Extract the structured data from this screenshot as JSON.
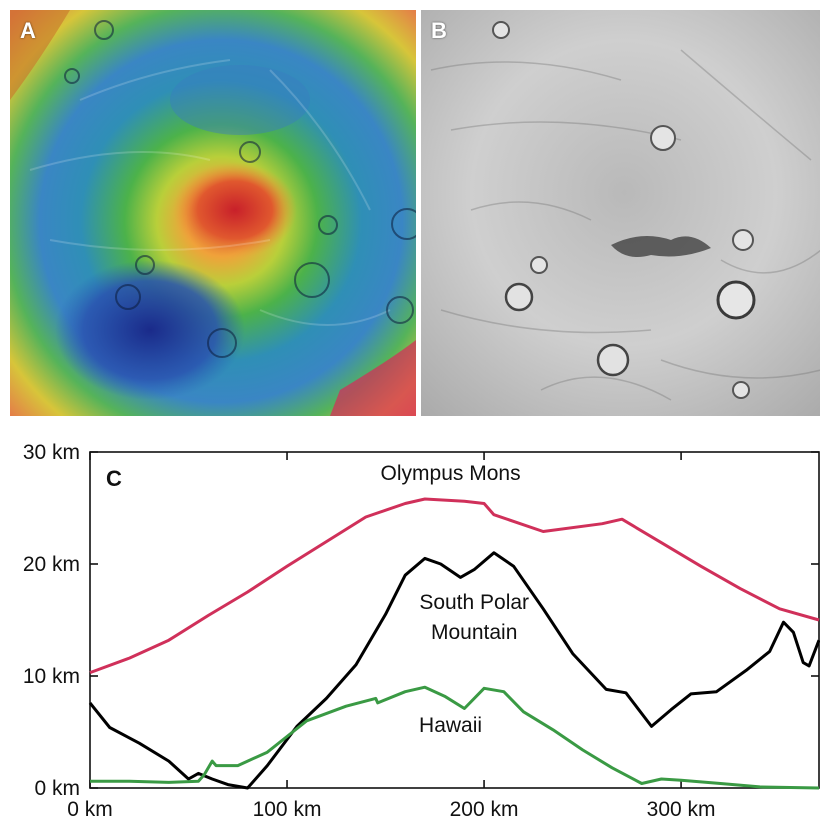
{
  "panels": [
    {
      "label": "A",
      "kind": "topographic-map"
    },
    {
      "label": "B",
      "kind": "grayscale-image"
    }
  ],
  "chart_data": {
    "type": "line",
    "panel_label": "C",
    "xlim": [
      0,
      370
    ],
    "ylim": [
      0,
      30
    ],
    "x_ticks": [
      0,
      100,
      200,
      300
    ],
    "x_tick_labels": [
      "0 km",
      "100 km",
      "200 km",
      "300 km"
    ],
    "y_ticks": [
      0,
      10,
      20,
      30
    ],
    "y_tick_labels": [
      "0 km",
      "10 km",
      "20 km",
      "30 km"
    ],
    "grid": false,
    "series": [
      {
        "name": "Olympus Mons",
        "color": "#d0305a",
        "points": [
          [
            0,
            10.3
          ],
          [
            20,
            11.6
          ],
          [
            40,
            13.2
          ],
          [
            60,
            15.4
          ],
          [
            80,
            17.5
          ],
          [
            100,
            19.8
          ],
          [
            120,
            22.0
          ],
          [
            140,
            24.2
          ],
          [
            160,
            25.4
          ],
          [
            170,
            25.8
          ],
          [
            190,
            25.6
          ],
          [
            200,
            25.4
          ],
          [
            205,
            24.4
          ],
          [
            230,
            22.9
          ],
          [
            260,
            23.6
          ],
          [
            270,
            24.0
          ],
          [
            290,
            21.9
          ],
          [
            310,
            19.8
          ],
          [
            330,
            17.8
          ],
          [
            350,
            16.0
          ],
          [
            370,
            15.0
          ]
        ]
      },
      {
        "name": "South Polar Mountain",
        "color": "#000000",
        "points": [
          [
            0,
            7.6
          ],
          [
            10,
            5.4
          ],
          [
            25,
            4.0
          ],
          [
            40,
            2.4
          ],
          [
            50,
            0.8
          ],
          [
            55,
            1.3
          ],
          [
            62,
            0.8
          ],
          [
            70,
            0.3
          ],
          [
            80,
            0.0
          ],
          [
            90,
            2.0
          ],
          [
            105,
            5.5
          ],
          [
            120,
            8.0
          ],
          [
            135,
            11.0
          ],
          [
            150,
            15.5
          ],
          [
            160,
            19.0
          ],
          [
            170,
            20.5
          ],
          [
            178,
            20.0
          ],
          [
            188,
            18.8
          ],
          [
            195,
            19.5
          ],
          [
            205,
            21.0
          ],
          [
            215,
            19.8
          ],
          [
            230,
            16.0
          ],
          [
            245,
            12.0
          ],
          [
            262,
            8.8
          ],
          [
            272,
            8.5
          ],
          [
            285,
            5.5
          ],
          [
            295,
            7.0
          ],
          [
            305,
            8.4
          ],
          [
            318,
            8.6
          ],
          [
            333,
            10.5
          ],
          [
            345,
            12.2
          ],
          [
            352,
            14.8
          ],
          [
            357,
            13.9
          ],
          [
            362,
            11.2
          ],
          [
            365,
            10.9
          ],
          [
            370,
            13.2
          ]
        ]
      },
      {
        "name": "Hawaii",
        "color": "#3a9a44",
        "points": [
          [
            0,
            0.6
          ],
          [
            20,
            0.6
          ],
          [
            40,
            0.5
          ],
          [
            55,
            0.6
          ],
          [
            58,
            1.2
          ],
          [
            62,
            2.4
          ],
          [
            64,
            2.0
          ],
          [
            75,
            2.0
          ],
          [
            90,
            3.2
          ],
          [
            100,
            4.6
          ],
          [
            110,
            6.0
          ],
          [
            130,
            7.3
          ],
          [
            145,
            8.0
          ],
          [
            146,
            7.6
          ],
          [
            160,
            8.6
          ],
          [
            170,
            9.0
          ],
          [
            180,
            8.2
          ],
          [
            190,
            7.1
          ],
          [
            200,
            8.9
          ],
          [
            210,
            8.6
          ],
          [
            220,
            6.8
          ],
          [
            235,
            5.2
          ],
          [
            250,
            3.4
          ],
          [
            265,
            1.8
          ],
          [
            280,
            0.4
          ],
          [
            290,
            0.8
          ],
          [
            300,
            0.7
          ],
          [
            320,
            0.4
          ],
          [
            340,
            0.1
          ],
          [
            370,
            0.0
          ]
        ]
      }
    ]
  }
}
